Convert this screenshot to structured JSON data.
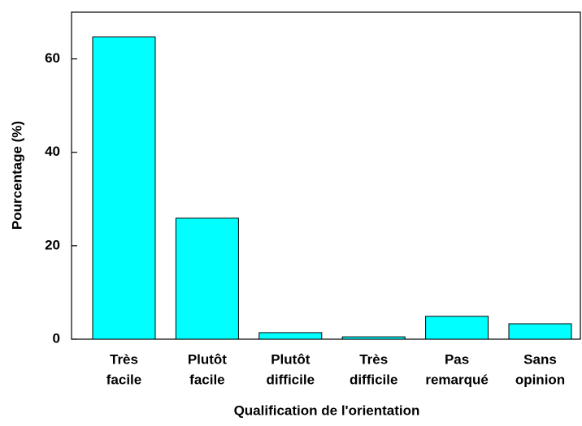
{
  "chart_data": {
    "type": "bar",
    "x_label": "Qualification de l'orientation",
    "y_label": "Pourcentage (%)",
    "categories": [
      [
        "Très",
        "facile"
      ],
      [
        "Plutôt",
        "facile"
      ],
      [
        "Plutôt",
        "difficile"
      ],
      [
        "Très",
        "difficile"
      ],
      [
        "Pas",
        "remarqué"
      ],
      [
        "Sans",
        "opinion"
      ]
    ],
    "values": [
      64.7,
      25.9,
      1.4,
      0.5,
      4.9,
      3.3
    ],
    "color": "#00ffff",
    "ylim": [
      0,
      70
    ],
    "yticks": [
      0,
      20,
      40,
      60
    ],
    "grid": false
  }
}
